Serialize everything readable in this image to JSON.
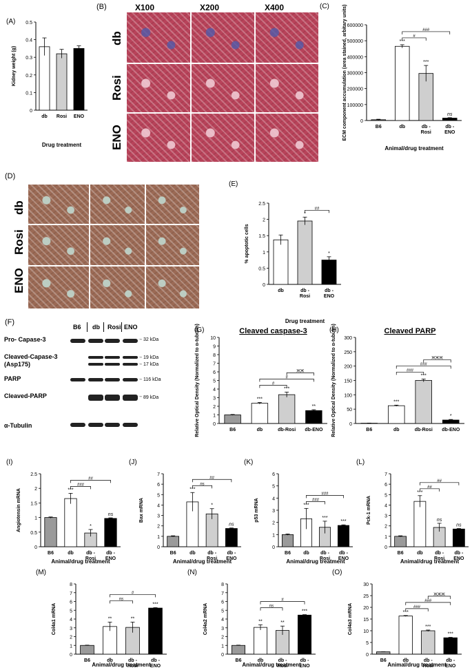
{
  "colors": {
    "white": "#ffffff",
    "grey": "#cfcfcf",
    "black": "#000000",
    "b6": "#999999"
  },
  "histology": {
    "magnifications": [
      "X100",
      "X200",
      "X400"
    ],
    "rows_b": [
      "db",
      "Rosi",
      "ENO"
    ],
    "rows_d": [
      "db",
      "Rosi",
      "ENO"
    ]
  },
  "western": {
    "lanes": [
      "B6",
      "db",
      "Rosi",
      "ENO"
    ],
    "rows": [
      "Pro- Capase-3",
      "Cleaved-Capase-3",
      "(Asp175)",
      "PARP",
      "Cleaved-PARP",
      "α-Tubulin"
    ],
    "kda": [
      "32 kDa",
      "19 kDa",
      "17 kDa",
      "116 kDa",
      "89 kDa"
    ]
  },
  "chart_data": [
    {
      "id": "A",
      "panel": "(A)",
      "type": "bar",
      "categories": [
        "db",
        "Rosi",
        "ENO"
      ],
      "values": [
        0.36,
        0.32,
        0.35
      ],
      "errors": [
        0.05,
        0.025,
        0.015
      ],
      "fills": [
        "white",
        "grey",
        "black"
      ],
      "ylabel": "Kidney weight (g)",
      "xlabel": "Drug treatment",
      "ylim": [
        0,
        0.5
      ],
      "ticks": [
        0,
        0.1,
        0.2,
        0.3,
        0.4,
        0.5
      ],
      "tick_labels": [
        "0",
        "0.1",
        "0.2",
        "0.3",
        "0.4",
        "0.5"
      ],
      "sig": [],
      "brackets": []
    },
    {
      "id": "C",
      "panel": "(C)",
      "type": "bar",
      "categories": [
        "B6",
        "db",
        "db - Rosi",
        "db - ENO"
      ],
      "values": [
        5000,
        465000,
        295000,
        15000
      ],
      "errors": [
        3000,
        10000,
        50000,
        3000
      ],
      "fills": [
        "b6",
        "white",
        "grey",
        "black"
      ],
      "ylabel": "ECM component accumulation (area stained, arbitary units)",
      "xlabel": "Animal/drug treatment",
      "ylim": [
        0,
        600000
      ],
      "ticks": [
        0,
        100000,
        200000,
        300000,
        400000,
        500000,
        600000
      ],
      "tick_labels": [
        "0",
        "100000",
        "200000",
        "300000",
        "400000",
        "500000",
        "600000"
      ],
      "sig": [
        "",
        "***",
        "***",
        "ns"
      ],
      "brackets": [
        {
          "from": 1,
          "to": 2,
          "label": "#"
        },
        {
          "from": 1,
          "to": 3,
          "label": "###"
        }
      ]
    },
    {
      "id": "E",
      "panel": "(E)",
      "type": "bar",
      "categories": [
        "db",
        "db - Rosi",
        "db - ENO"
      ],
      "values": [
        1.37,
        1.95,
        0.75
      ],
      "errors": [
        0.15,
        0.12,
        0.1
      ],
      "fills": [
        "white",
        "grey",
        "black"
      ],
      "ylabel": "% apoptotic cells",
      "xlabel": "Drug treatment",
      "ylim": [
        0,
        2.5
      ],
      "ticks": [
        0,
        0.5,
        1,
        1.5,
        2,
        2.5
      ],
      "tick_labels": [
        "0",
        "0.5",
        "1",
        "1.5",
        "2",
        "2.5"
      ],
      "sig": [
        "",
        "*",
        "*"
      ],
      "brackets": [
        {
          "from": 1,
          "to": 2,
          "label": "##"
        }
      ]
    },
    {
      "id": "G",
      "panel": "(G)",
      "type": "bar",
      "title": "Cleaved caspase-3",
      "categories": [
        "B6",
        "db",
        "db-Rosi",
        "db-ENO"
      ],
      "values": [
        1,
        2.35,
        3.35,
        1.5
      ],
      "errors": [
        0.05,
        0.1,
        0.3,
        0.1
      ],
      "fills": [
        "b6",
        "white",
        "grey",
        "black"
      ],
      "ylabel": "Relative Optical Density (Normalized to α-tubulin)",
      "xlabel": "",
      "ylim": [
        0,
        10
      ],
      "ticks": [
        0,
        1,
        2,
        3,
        4,
        5,
        6,
        7,
        8,
        9,
        10
      ],
      "tick_labels": [
        "0",
        "1",
        "2",
        "3",
        "4",
        "5",
        "6",
        "7",
        "8",
        "9",
        "10"
      ],
      "sig": [
        "",
        "***",
        "***",
        "**"
      ],
      "brackets": [
        {
          "from": 1,
          "to": 2,
          "label": "#"
        },
        {
          "from": 1,
          "to": 3,
          "label": "#"
        },
        {
          "from": 2,
          "to": 3,
          "label": "ЖЖ"
        }
      ]
    },
    {
      "id": "H",
      "panel": "(H)",
      "type": "bar",
      "title": "Cleaved PARP",
      "categories": [
        "B6",
        "db",
        "db-Rosi",
        "db-ENO"
      ],
      "values": [
        1,
        62,
        150,
        12
      ],
      "errors": [
        0.5,
        2,
        5,
        2
      ],
      "fills": [
        "b6",
        "white",
        "grey",
        "black"
      ],
      "ylabel": "Relative Optical Density (Normalized to α-tubulin)",
      "xlabel": "",
      "ylim": [
        0,
        300
      ],
      "ticks": [
        0,
        50,
        100,
        150,
        200,
        250,
        300
      ],
      "tick_labels": [
        "0",
        "50",
        "100",
        "150",
        "200",
        "250",
        "300"
      ],
      "sig": [
        "",
        "***",
        "***",
        "*"
      ],
      "brackets": [
        {
          "from": 1,
          "to": 2,
          "label": "###"
        },
        {
          "from": 1,
          "to": 3,
          "label": "###"
        },
        {
          "from": 2,
          "to": 3,
          "label": "ЖЖЖ"
        }
      ]
    },
    {
      "id": "I",
      "panel": "(I)",
      "type": "bar",
      "categories": [
        "B6",
        "db",
        "db - Rosi",
        "db - ENO"
      ],
      "values": [
        1,
        1.65,
        0.47,
        0.97
      ],
      "errors": [
        0.02,
        0.18,
        0.12,
        0.02
      ],
      "fills": [
        "b6",
        "white",
        "grey",
        "black"
      ],
      "ylabel": "Angiotensin mRNA",
      "xlabel": "Animal/drug treatment",
      "ylim": [
        0,
        2.5
      ],
      "ticks": [
        0,
        0.5,
        1,
        1.5,
        2,
        2.5
      ],
      "tick_labels": [
        "0",
        "0.5",
        "1",
        "1.5",
        "2",
        "2.5"
      ],
      "sig": [
        "",
        "***",
        "*",
        "ns"
      ],
      "brackets": [
        {
          "from": 1,
          "to": 2,
          "label": "###"
        },
        {
          "from": 1,
          "to": 3,
          "label": "##"
        }
      ]
    },
    {
      "id": "J",
      "panel": "(J)",
      "type": "bar",
      "categories": [
        "B6",
        "db",
        "db - Rosi",
        "db - ENO"
      ],
      "values": [
        1,
        4.3,
        3.15,
        1.75
      ],
      "errors": [
        0.05,
        0.9,
        0.5,
        0.05
      ],
      "fills": [
        "b6",
        "white",
        "grey",
        "black"
      ],
      "ylabel": "Bax mRNA",
      "xlabel": "Animal/drug treatment",
      "ylim": [
        0,
        7
      ],
      "ticks": [
        0,
        1,
        2,
        3,
        4,
        5,
        6,
        7
      ],
      "tick_labels": [
        "0",
        "1",
        "2",
        "3",
        "4",
        "5",
        "6",
        "7"
      ],
      "sig": [
        "",
        "***",
        "*",
        "ns"
      ],
      "brackets": [
        {
          "from": 1,
          "to": 2,
          "label": "ns"
        },
        {
          "from": 1,
          "to": 3,
          "label": "##"
        }
      ]
    },
    {
      "id": "K",
      "panel": "(K)",
      "type": "bar",
      "categories": [
        "B6",
        "db",
        "db - Rosi",
        "db - ENO"
      ],
      "values": [
        1,
        2.3,
        1.6,
        1.75
      ],
      "errors": [
        0.05,
        0.85,
        0.5,
        0.05
      ],
      "fills": [
        "b6",
        "white",
        "grey",
        "black"
      ],
      "ylabel": "p53 mRNA",
      "xlabel": "Animal/drug treatment",
      "ylim": [
        0,
        6
      ],
      "ticks": [
        0,
        1,
        2,
        3,
        4,
        5,
        6
      ],
      "tick_labels": [
        "0",
        "1",
        "2",
        "3",
        "4",
        "5",
        "6"
      ],
      "sig": [
        "",
        "***",
        "***",
        "***"
      ],
      "brackets": [
        {
          "from": 1,
          "to": 2,
          "label": "###"
        },
        {
          "from": 1,
          "to": 3,
          "label": "###"
        }
      ]
    },
    {
      "id": "L",
      "panel": "(L)",
      "type": "bar",
      "categories": [
        "B6",
        "db",
        "db - Rosi",
        "db - ENO"
      ],
      "values": [
        1,
        4.35,
        1.85,
        1.7
      ],
      "errors": [
        0.05,
        0.55,
        0.4,
        0.05
      ],
      "fills": [
        "b6",
        "white",
        "grey",
        "black"
      ],
      "ylabel": "Pck-1 mRNA",
      "xlabel": "Animal/drug treatment",
      "ylim": [
        0,
        7
      ],
      "ticks": [
        0,
        1,
        2,
        3,
        4,
        5,
        6,
        7
      ],
      "tick_labels": [
        "0",
        "1",
        "2",
        "3",
        "4",
        "5",
        "6",
        "7"
      ],
      "sig": [
        "",
        "***",
        "ns",
        "ns"
      ],
      "brackets": [
        {
          "from": 1,
          "to": 2,
          "label": "##"
        },
        {
          "from": 1,
          "to": 3,
          "label": "##"
        }
      ]
    },
    {
      "id": "M",
      "panel": "(M)",
      "type": "bar",
      "categories": [
        "B6",
        "db",
        "db - Rosi",
        "db - ENO"
      ],
      "values": [
        1,
        3.15,
        3.05,
        5.25
      ],
      "errors": [
        0.03,
        0.5,
        0.6,
        0.05
      ],
      "fills": [
        "b6",
        "white",
        "grey",
        "black"
      ],
      "ylabel": "Col4a1 mRNA",
      "xlabel": "Animal/drug treatment",
      "ylim": [
        0,
        8
      ],
      "ticks": [
        0,
        1,
        2,
        3,
        4,
        5,
        6,
        7,
        8
      ],
      "tick_labels": [
        "0",
        "1",
        "2",
        "3",
        "4",
        "5",
        "6",
        "7",
        "8"
      ],
      "sig": [
        "",
        "**",
        "**",
        "***"
      ],
      "brackets": [
        {
          "from": 1,
          "to": 2,
          "label": "ns"
        },
        {
          "from": 1,
          "to": 3,
          "label": "#"
        }
      ]
    },
    {
      "id": "N",
      "panel": "(N)",
      "type": "bar",
      "categories": [
        "B6",
        "db",
        "db - Rosi",
        "db - ENO"
      ],
      "values": [
        1,
        3.05,
        2.7,
        4.45
      ],
      "errors": [
        0.03,
        0.3,
        0.5,
        0.05
      ],
      "fills": [
        "b6",
        "white",
        "grey",
        "black"
      ],
      "ylabel": "Col4a2 mRNA",
      "xlabel": "Animal/drug treatment",
      "ylim": [
        0,
        8
      ],
      "ticks": [
        0,
        1,
        2,
        3,
        4,
        5,
        6,
        7,
        8
      ],
      "tick_labels": [
        "0",
        "1",
        "2",
        "3",
        "4",
        "5",
        "6",
        "7",
        "8"
      ],
      "sig": [
        "",
        "**",
        "**",
        "***"
      ],
      "brackets": [
        {
          "from": 1,
          "to": 2,
          "label": "ns"
        },
        {
          "from": 1,
          "to": 3,
          "label": "#"
        }
      ]
    },
    {
      "id": "O",
      "panel": "(O)",
      "type": "bar",
      "categories": [
        "B6",
        "db",
        "db - Rosi",
        "db - ENO"
      ],
      "values": [
        1,
        16.3,
        10,
        7
      ],
      "errors": [
        0.03,
        0.2,
        0.3,
        0.2
      ],
      "fills": [
        "b6",
        "white",
        "grey",
        "black"
      ],
      "ylabel": "Col4a3 mRNA",
      "xlabel": "Animal/drug treatment",
      "ylim": [
        0,
        30
      ],
      "ticks": [
        0,
        5,
        10,
        15,
        20,
        25,
        30
      ],
      "tick_labels": [
        "0",
        "5",
        "10",
        "15",
        "20",
        "25",
        "30"
      ],
      "sig": [
        "",
        "***",
        "***",
        "***"
      ],
      "brackets": [
        {
          "from": 1,
          "to": 2,
          "label": "###"
        },
        {
          "from": 1,
          "to": 3,
          "label": "###"
        },
        {
          "from": 2,
          "to": 3,
          "label": "ЖЖЖ"
        }
      ]
    }
  ]
}
